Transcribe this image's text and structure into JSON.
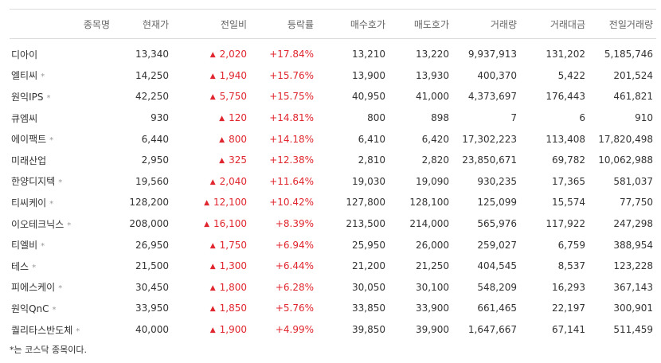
{
  "headers": {
    "name": "종목명",
    "price": "현재가",
    "diff": "전일비",
    "rate": "등락률",
    "bid": "매수호가",
    "ask": "매도호가",
    "volume": "거래량",
    "amount": "거래대금",
    "prev_volume": "전일거래량"
  },
  "rise_symbol": "▲",
  "kosdaq_mark": "*",
  "rows": [
    {
      "name": "디아이",
      "kosdaq": false,
      "price": "13,340",
      "diff": "2,020",
      "rate": "+17.84%",
      "bid": "13,210",
      "ask": "13,220",
      "volume": "9,937,913",
      "amount": "131,202",
      "prev_volume": "5,185,746"
    },
    {
      "name": "엘티씨",
      "kosdaq": true,
      "price": "14,250",
      "diff": "1,940",
      "rate": "+15.76%",
      "bid": "13,900",
      "ask": "13,930",
      "volume": "400,370",
      "amount": "5,422",
      "prev_volume": "201,524"
    },
    {
      "name": "원익IPS",
      "kosdaq": true,
      "price": "42,250",
      "diff": "5,750",
      "rate": "+15.75%",
      "bid": "40,950",
      "ask": "41,000",
      "volume": "4,373,697",
      "amount": "176,443",
      "prev_volume": "461,821"
    },
    {
      "name": "큐엠씨",
      "kosdaq": false,
      "price": "930",
      "diff": "120",
      "rate": "+14.81%",
      "bid": "800",
      "ask": "898",
      "volume": "7",
      "amount": "6",
      "prev_volume": "910"
    },
    {
      "name": "에이팩트",
      "kosdaq": true,
      "price": "6,440",
      "diff": "800",
      "rate": "+14.18%",
      "bid": "6,410",
      "ask": "6,420",
      "volume": "17,302,223",
      "amount": "113,408",
      "prev_volume": "17,820,498"
    },
    {
      "name": "미래산업",
      "kosdaq": false,
      "price": "2,950",
      "diff": "325",
      "rate": "+12.38%",
      "bid": "2,810",
      "ask": "2,820",
      "volume": "23,850,671",
      "amount": "69,782",
      "prev_volume": "10,062,988"
    },
    {
      "name": "한양디지텍",
      "kosdaq": true,
      "price": "19,560",
      "diff": "2,040",
      "rate": "+11.64%",
      "bid": "19,030",
      "ask": "19,090",
      "volume": "930,235",
      "amount": "17,365",
      "prev_volume": "581,037"
    },
    {
      "name": "티씨케이",
      "kosdaq": true,
      "price": "128,200",
      "diff": "12,100",
      "rate": "+10.42%",
      "bid": "127,800",
      "ask": "128,100",
      "volume": "125,099",
      "amount": "15,574",
      "prev_volume": "77,750"
    },
    {
      "name": "이오테크닉스",
      "kosdaq": true,
      "price": "208,000",
      "diff": "16,100",
      "rate": "+8.39%",
      "bid": "213,500",
      "ask": "214,000",
      "volume": "565,976",
      "amount": "117,922",
      "prev_volume": "247,298"
    },
    {
      "name": "티엘비",
      "kosdaq": true,
      "price": "26,950",
      "diff": "1,750",
      "rate": "+6.94%",
      "bid": "25,950",
      "ask": "26,000",
      "volume": "259,027",
      "amount": "6,759",
      "prev_volume": "388,954"
    },
    {
      "name": "테스",
      "kosdaq": true,
      "price": "21,500",
      "diff": "1,300",
      "rate": "+6.44%",
      "bid": "21,200",
      "ask": "21,250",
      "volume": "404,545",
      "amount": "8,537",
      "prev_volume": "123,228"
    },
    {
      "name": "피에스케이",
      "kosdaq": true,
      "price": "30,450",
      "diff": "1,800",
      "rate": "+6.28%",
      "bid": "30,050",
      "ask": "30,100",
      "volume": "548,209",
      "amount": "16,293",
      "prev_volume": "367,143"
    },
    {
      "name": "원익QnC",
      "kosdaq": true,
      "price": "33,950",
      "diff": "1,850",
      "rate": "+5.76%",
      "bid": "33,850",
      "ask": "33,900",
      "volume": "661,465",
      "amount": "22,197",
      "prev_volume": "300,901"
    },
    {
      "name": "퀄리타스반도체",
      "kosdaq": true,
      "price": "40,000",
      "diff": "1,900",
      "rate": "+4.99%",
      "bid": "39,850",
      "ask": "39,900",
      "volume": "1,647,667",
      "amount": "67,141",
      "prev_volume": "511,459"
    }
  ],
  "footnote": "*는 코스닥 종목이다.",
  "colors": {
    "rise": "#e0262e",
    "header_text": "#666666",
    "border": "#dcdcdc",
    "mark": "#999999"
  }
}
